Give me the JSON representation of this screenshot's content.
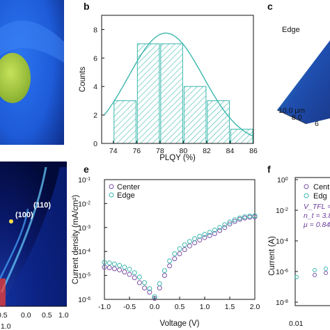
{
  "colors": {
    "teal": "#3ab7ad",
    "teal_light": "#5fd3cb",
    "purple": "#7b4fa6",
    "blue_photo": "#1e5bd8",
    "green_photo": "#a9cf3e",
    "xrd_bg": "#020a3a"
  },
  "panel_labels": {
    "b": "b",
    "c": "c",
    "e": "e",
    "f": "f"
  },
  "panel_a": {
    "description_icon": "photo-of-film-icon"
  },
  "panel_c": {
    "label": "Edge",
    "ticks": [
      "10.0 μm",
      "8.0",
      "6"
    ]
  },
  "panel_d": {
    "labels": [
      "(110)",
      "(100)"
    ],
    "x_ticks": [
      "0.5",
      "1.0",
      "0.0",
      "0.5",
      "1.0"
    ]
  },
  "panel_f": {
    "ylabel": "Current (A)",
    "y_ticks": [
      "10^0",
      "10^-2",
      "10^-4",
      "10^-6",
      "10^-8"
    ],
    "x_ticks": [
      "0.01"
    ],
    "legend": [
      "Cent",
      "Edg"
    ],
    "annotations": [
      "V_TFL = 0.",
      "n_t = 3.86",
      "μ = 0.84"
    ]
  },
  "chart_data": [
    {
      "panel": "b",
      "type": "bar",
      "bins": [
        {
          "x0": 74,
          "x1": 76,
          "count": 3
        },
        {
          "x0": 76,
          "x1": 78,
          "count": 7
        },
        {
          "x0": 78,
          "x1": 80,
          "count": 7
        },
        {
          "x0": 80,
          "x1": 82,
          "count": 4
        },
        {
          "x0": 82,
          "x1": 84,
          "count": 3
        },
        {
          "x0": 84,
          "x1": 86,
          "count": 1
        }
      ],
      "fit": {
        "type": "gaussian",
        "mean": 78.5,
        "sigma": 3.2,
        "amplitude": 7.75
      },
      "xlabel": "PLQY (%)",
      "ylabel": "Counts",
      "xlim": [
        73,
        86
      ],
      "ylim": [
        0,
        9
      ],
      "xticks": [
        74,
        76,
        78,
        80,
        82,
        84,
        86
      ],
      "yticks": [
        0,
        2,
        4,
        6,
        8
      ],
      "grid": false
    },
    {
      "panel": "e",
      "type": "scatter",
      "xlabel": "Voltage (V)",
      "ylabel": "Current density (mA/cm²)",
      "xlim": [
        -1.0,
        2.0
      ],
      "ylim_log10": [
        -6,
        -1
      ],
      "y_scale": "log",
      "xticks": [
        -1.0,
        -0.5,
        0.0,
        0.5,
        1.0,
        1.5,
        2.0
      ],
      "ytick_labels": [
        "10^-6",
        "10^-5",
        "10^-4",
        "10^-3",
        "10^-2",
        "10^-1"
      ],
      "legend_position": "top-left",
      "series": [
        {
          "name": "Center",
          "marker": "open-circle",
          "color": "#7b4fa6",
          "points": [
            [
              -1.0,
              2.2e-05
            ],
            [
              -0.9,
              2.1e-05
            ],
            [
              -0.8,
              1.9e-05
            ],
            [
              -0.7,
              1.7e-05
            ],
            [
              -0.6,
              1.4e-05
            ],
            [
              -0.5,
              1.1e-05
            ],
            [
              -0.4,
              8e-06
            ],
            [
              -0.3,
              5e-06
            ],
            [
              -0.2,
              3e-06
            ],
            [
              -0.1,
              2e-06
            ],
            [
              0.0,
              1.1e-06
            ],
            [
              0.1,
              3e-06
            ],
            [
              0.2,
              1e-05
            ],
            [
              0.3,
              2.5e-05
            ],
            [
              0.4,
              5e-05
            ],
            [
              0.5,
              8e-05
            ],
            [
              0.6,
              0.00012
            ],
            [
              0.7,
              0.00017
            ],
            [
              0.8,
              0.00023
            ],
            [
              0.9,
              0.0003
            ],
            [
              1.0,
              0.00038
            ],
            [
              1.1,
              0.00046
            ],
            [
              1.2,
              0.00056
            ],
            [
              1.3,
              0.00075
            ],
            [
              1.4,
              0.001
            ],
            [
              1.5,
              0.0014
            ],
            [
              1.6,
              0.0018
            ],
            [
              1.7,
              0.0022
            ],
            [
              1.8,
              0.0025
            ],
            [
              1.9,
              0.0027
            ],
            [
              2.0,
              0.0028
            ]
          ]
        },
        {
          "name": "Edge",
          "marker": "open-circle",
          "color": "#3ab7ad",
          "points": [
            [
              -1.0,
              3.5e-05
            ],
            [
              -0.9,
              3.3e-05
            ],
            [
              -0.8,
              3e-05
            ],
            [
              -0.7,
              2.6e-05
            ],
            [
              -0.6,
              2.2e-05
            ],
            [
              -0.5,
              1.8e-05
            ],
            [
              -0.4,
              1.3e-05
            ],
            [
              -0.3,
              8.5e-06
            ],
            [
              -0.2,
              5e-06
            ],
            [
              -0.1,
              2.8e-06
            ],
            [
              0.0,
              1.3e-06
            ],
            [
              0.1,
              4.5e-06
            ],
            [
              0.2,
              1.6e-05
            ],
            [
              0.3,
              4e-05
            ],
            [
              0.4,
              8e-05
            ],
            [
              0.5,
              0.00013
            ],
            [
              0.6,
              0.00019
            ],
            [
              0.7,
              0.00026
            ],
            [
              0.8,
              0.00034
            ],
            [
              0.9,
              0.00043
            ],
            [
              1.0,
              0.00052
            ],
            [
              1.1,
              0.00062
            ],
            [
              1.2,
              0.00078
            ],
            [
              1.3,
              0.001
            ],
            [
              1.4,
              0.0013
            ],
            [
              1.5,
              0.0017
            ],
            [
              1.6,
              0.0021
            ],
            [
              1.7,
              0.0025
            ],
            [
              1.8,
              0.0028
            ],
            [
              1.9,
              0.003
            ],
            [
              2.0,
              0.0031
            ]
          ]
        }
      ]
    }
  ]
}
